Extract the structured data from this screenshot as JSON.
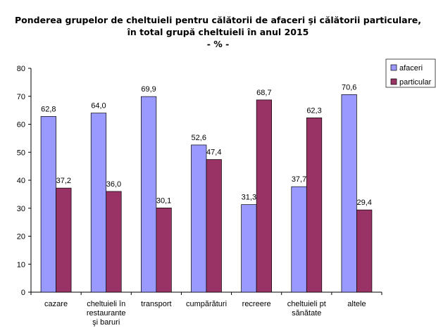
{
  "chart_data": {
    "type": "bar",
    "title": "Ponderea grupelor de cheltuieli pentru călătorii de afaceri şi călătorii particulare,",
    "title_line2": "în total grupă cheltuieli în anul 2015",
    "subtitle": "- % -",
    "categories": [
      [
        "cazare"
      ],
      [
        "cheltuieli în",
        "restaurante",
        "şi baruri"
      ],
      [
        "transport"
      ],
      [
        "cumpărături"
      ],
      [
        "recreere"
      ],
      [
        "cheltuieli pt",
        "sănătate"
      ],
      [
        "altele"
      ]
    ],
    "series": [
      {
        "name": "afaceri",
        "color": "#9999FF",
        "values": [
          62.8,
          64.0,
          69.9,
          52.6,
          31.3,
          37.7,
          70.6
        ],
        "labels": [
          "62,8",
          "64,0",
          "69,9",
          "52,6",
          "31,3",
          "37,7",
          "70,6"
        ]
      },
      {
        "name": "particular",
        "color": "#993366",
        "values": [
          37.2,
          36.0,
          30.1,
          47.4,
          68.7,
          62.3,
          29.4
        ],
        "labels": [
          "37,2",
          "36,0",
          "30,1",
          "47,4",
          "68,7",
          "62,3",
          "29,4"
        ]
      }
    ],
    "ylim": [
      0,
      80
    ],
    "yticks": [
      0,
      10,
      20,
      30,
      40,
      50,
      60,
      70,
      80
    ],
    "grid": false,
    "legend": "right"
  }
}
